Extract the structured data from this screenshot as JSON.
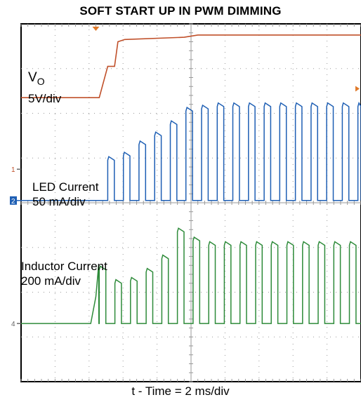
{
  "chart_data": {
    "type": "line",
    "title": "SOFT START UP IN PWM DIMMING",
    "xlabel": "t - Time = 2 ms/div",
    "ylabel": "",
    "x_divisions": 10,
    "y_divisions": 8,
    "x_unit": "div",
    "series": [
      {
        "name": "VO",
        "label_main": "V",
        "label_sub": "O",
        "scale": "5V/div",
        "channel": "",
        "color": "#c0502a",
        "points": [
          [
            0,
            6.35
          ],
          [
            2.3,
            6.35
          ],
          [
            2.55,
            7.05
          ],
          [
            2.75,
            7.05
          ],
          [
            2.85,
            7.6
          ],
          [
            3.05,
            7.65
          ],
          [
            4.8,
            7.7
          ],
          [
            5.2,
            7.75
          ],
          [
            10,
            7.75
          ]
        ]
      },
      {
        "name": "LED Current",
        "scale": "50 mA/div",
        "channel": "2",
        "color": "#1e5fb4",
        "baseline_div": 4.05,
        "pulse_high_div": [
          4.95,
          5.05,
          5.3,
          5.5,
          5.75,
          6.05,
          6.1,
          6.15,
          6.15,
          6.15,
          6.15,
          6.15,
          6.15,
          6.15,
          6.15,
          6.15,
          6.15,
          6.15,
          6.15,
          6.15
        ],
        "pulse_start_div": 2.55,
        "pulse_period_div": 0.46,
        "duty": 0.42
      },
      {
        "name": "Inductor Current",
        "scale": "200 mA/div",
        "channel": "4",
        "color": "#2e8b3a",
        "baseline_div": 1.3,
        "ramp_start_div": 2.05,
        "pulse_high_div": [
          2.5,
          2.2,
          2.25,
          2.45,
          2.75,
          3.35,
          3.15,
          3.05,
          3.05,
          3.05,
          3.05,
          3.05,
          3.05,
          3.05,
          3.05,
          3.05,
          3.05,
          3.05,
          3.05,
          3.05
        ],
        "pulse_start_div": 2.3,
        "pulse_period_div": 0.46,
        "duty": 0.42
      }
    ],
    "grid": true
  }
}
